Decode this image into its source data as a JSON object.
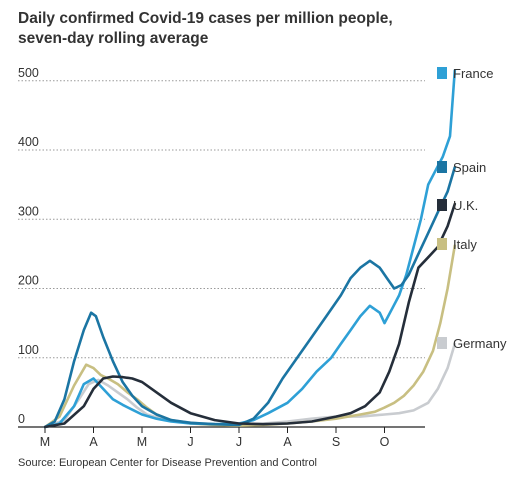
{
  "chart_data": {
    "type": "line",
    "title": "Daily confirmed Covid-19 cases per million people, seven-day rolling average",
    "title_lines": [
      "Daily confirmed Covid-19 cases per million people,",
      "seven-day rolling average"
    ],
    "source": "Source: European Center for Disease Prevention and Control",
    "x_ticks": [
      "M",
      "A",
      "M",
      "J",
      "J",
      "A",
      "S",
      "O"
    ],
    "y_ticks": [
      0,
      100,
      200,
      300,
      400,
      500
    ],
    "ylim": [
      0,
      530
    ],
    "xlim": [
      0,
      8.55
    ],
    "grid": true,
    "legend": "right",
    "series": [
      {
        "name": "France",
        "color": "#2ea0d6",
        "x": [
          0,
          0.3,
          0.6,
          0.8,
          1.0,
          1.2,
          1.4,
          1.6,
          1.8,
          2.0,
          2.3,
          2.6,
          3.0,
          3.5,
          4.0,
          4.3,
          4.6,
          5.0,
          5.3,
          5.6,
          5.9,
          6.1,
          6.3,
          6.5,
          6.7,
          6.9,
          7.0,
          7.15,
          7.3,
          7.45,
          7.6,
          7.75,
          7.9,
          8.05,
          8.2,
          8.35,
          8.45
        ],
        "values": [
          0,
          5,
          30,
          62,
          70,
          55,
          40,
          32,
          25,
          18,
          12,
          8,
          5,
          4,
          5,
          10,
          20,
          35,
          55,
          80,
          100,
          120,
          140,
          160,
          175,
          165,
          150,
          170,
          190,
          220,
          260,
          300,
          350,
          370,
          390,
          420,
          515
        ]
      },
      {
        "name": "Spain",
        "color": "#1b75a3",
        "x": [
          0,
          0.2,
          0.4,
          0.6,
          0.8,
          0.95,
          1.05,
          1.2,
          1.4,
          1.6,
          1.8,
          2.0,
          2.3,
          2.6,
          3.0,
          3.5,
          4.0,
          4.3,
          4.6,
          4.9,
          5.2,
          5.5,
          5.8,
          6.1,
          6.3,
          6.5,
          6.7,
          6.9,
          7.05,
          7.2,
          7.35,
          7.5,
          7.7,
          7.9,
          8.1,
          8.3,
          8.45
        ],
        "values": [
          0,
          8,
          40,
          95,
          140,
          165,
          160,
          130,
          95,
          65,
          45,
          30,
          18,
          10,
          6,
          4,
          3,
          12,
          35,
          70,
          100,
          130,
          160,
          190,
          215,
          230,
          240,
          230,
          215,
          200,
          205,
          220,
          250,
          280,
          310,
          340,
          375
        ]
      },
      {
        "name": "U.K.",
        "color": "#252e3a",
        "x": [
          0,
          0.4,
          0.8,
          1.0,
          1.2,
          1.4,
          1.6,
          1.8,
          2.0,
          2.3,
          2.6,
          3.0,
          3.5,
          4.0,
          4.5,
          5.0,
          5.5,
          6.0,
          6.3,
          6.6,
          6.9,
          7.1,
          7.3,
          7.5,
          7.7,
          7.9,
          8.1,
          8.3,
          8.45
        ],
        "values": [
          0,
          5,
          30,
          55,
          70,
          73,
          72,
          70,
          65,
          50,
          35,
          20,
          10,
          5,
          4,
          5,
          8,
          15,
          20,
          30,
          50,
          80,
          120,
          180,
          230,
          245,
          260,
          290,
          322
        ]
      },
      {
        "name": "Italy",
        "color": "#c8bf82",
        "x": [
          0,
          0.3,
          0.6,
          0.85,
          1.0,
          1.15,
          1.3,
          1.5,
          1.7,
          1.9,
          2.1,
          2.3,
          2.6,
          3.0,
          3.5,
          4.0,
          4.5,
          5.0,
          5.5,
          6.0,
          6.5,
          6.8,
          7.0,
          7.2,
          7.4,
          7.6,
          7.8,
          8.0,
          8.15,
          8.3,
          8.45
        ],
        "values": [
          0,
          15,
          60,
          90,
          85,
          75,
          70,
          62,
          50,
          40,
          28,
          18,
          10,
          5,
          3,
          2,
          3,
          5,
          8,
          12,
          18,
          22,
          28,
          35,
          45,
          60,
          80,
          110,
          150,
          200,
          262
        ]
      },
      {
        "name": "Germany",
        "color": "#c9ccd0",
        "x": [
          0,
          0.4,
          0.7,
          0.9,
          1.1,
          1.3,
          1.5,
          1.7,
          1.9,
          2.1,
          2.4,
          2.8,
          3.2,
          3.6,
          4.0,
          4.5,
          5.0,
          5.5,
          6.0,
          6.5,
          7.0,
          7.3,
          7.6,
          7.9,
          8.1,
          8.3,
          8.45
        ],
        "values": [
          0,
          10,
          40,
          62,
          68,
          60,
          50,
          40,
          28,
          18,
          12,
          8,
          5,
          4,
          4,
          5,
          8,
          12,
          15,
          15,
          18,
          20,
          24,
          35,
          55,
          85,
          120
        ]
      }
    ]
  }
}
